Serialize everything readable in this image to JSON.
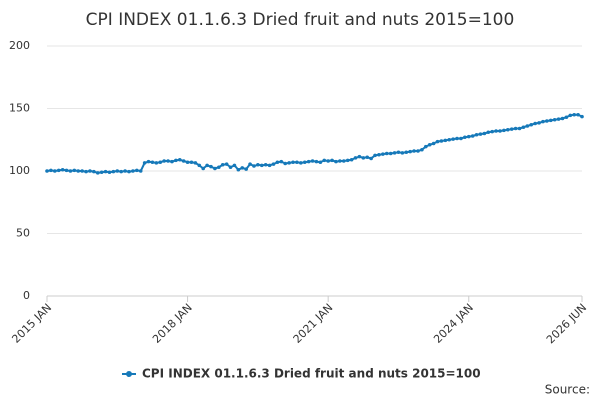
{
  "chart_data": {
    "type": "line",
    "title": "CPI INDEX 01.1.6.3 Dried fruit and nuts 2015=100",
    "categories": [
      "2015 JAN",
      null,
      null,
      null,
      null,
      null,
      null,
      null,
      null,
      null,
      null,
      null,
      null,
      null,
      null,
      null,
      null,
      null,
      null,
      null,
      null,
      null,
      null,
      null,
      null,
      null,
      null,
      null,
      null,
      null,
      null,
      null,
      null,
      null,
      null,
      null,
      "2018 JAN",
      null,
      null,
      null,
      null,
      null,
      null,
      null,
      null,
      null,
      null,
      null,
      null,
      null,
      null,
      null,
      null,
      null,
      null,
      null,
      null,
      null,
      null,
      null,
      null,
      null,
      null,
      null,
      null,
      null,
      null,
      null,
      null,
      null,
      null,
      null,
      "2021 JAN",
      null,
      null,
      null,
      null,
      null,
      null,
      null,
      null,
      null,
      null,
      null,
      null,
      null,
      null,
      null,
      null,
      null,
      null,
      null,
      null,
      null,
      null,
      null,
      null,
      null,
      null,
      null,
      null,
      null,
      null,
      null,
      null,
      null,
      null,
      null,
      "2024 JAN",
      null,
      null,
      null,
      null,
      null,
      null,
      null,
      null,
      null,
      null,
      null,
      null,
      null,
      null,
      null,
      null,
      null,
      null,
      null,
      null,
      null,
      null,
      null,
      null,
      null,
      null,
      null,
      null,
      "2026 JUN"
    ],
    "series": [
      {
        "name": "CPI INDEX 01.1.6.3 Dried fruit and nuts 2015=100",
        "color": "#1679b9",
        "values": [
          100,
          100.5,
          100,
          100.5,
          101,
          100.5,
          100,
          100.5,
          100,
          100,
          99.5,
          100,
          99.5,
          98.5,
          99,
          99.5,
          99,
          99.5,
          100,
          99.5,
          100,
          99.5,
          100,
          100.5,
          100,
          106.5,
          107.5,
          107,
          106.5,
          107,
          108,
          108,
          107.5,
          108.5,
          109,
          108,
          107,
          107,
          106.5,
          104.5,
          102,
          104.5,
          103.5,
          102,
          103,
          105,
          105.5,
          103,
          104.5,
          101,
          102.5,
          101.5,
          105.5,
          104,
          105,
          104.5,
          105,
          104.5,
          105.5,
          107,
          107.5,
          106,
          106.5,
          107,
          107,
          106.5,
          107,
          107.5,
          108,
          107.5,
          107,
          108.5,
          108,
          108.5,
          107.5,
          108,
          108,
          108.5,
          109,
          110.5,
          111.5,
          110.5,
          111,
          110,
          112.5,
          113,
          113.5,
          114,
          114,
          114.5,
          115,
          114.5,
          115,
          115.5,
          116,
          116,
          117,
          119.5,
          121,
          122,
          123.5,
          124,
          124.5,
          125,
          125.5,
          126,
          126,
          127,
          127.5,
          128,
          129,
          129.5,
          130,
          131,
          131.5,
          132,
          132,
          132.5,
          133,
          133.5,
          134,
          134,
          135,
          136,
          137,
          138,
          138.5,
          139.5,
          140,
          140.5,
          141,
          141.5,
          142,
          143,
          144.5,
          145,
          145,
          143.5
        ]
      }
    ],
    "ylim": [
      0,
      200
    ],
    "yticks": [
      0,
      50,
      100,
      150,
      200
    ],
    "grid": true,
    "source": "Source:"
  }
}
